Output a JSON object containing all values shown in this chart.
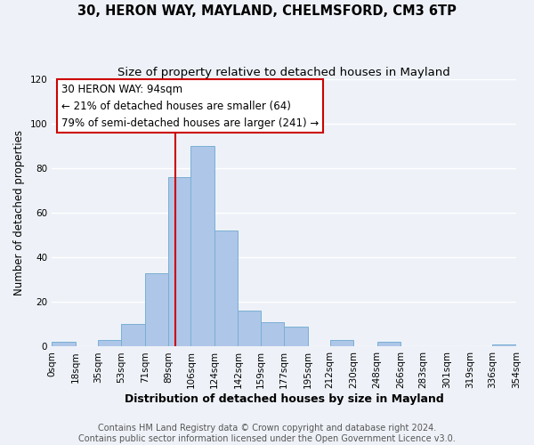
{
  "title": "30, HERON WAY, MAYLAND, CHELMSFORD, CM3 6TP",
  "subtitle": "Size of property relative to detached houses in Mayland",
  "xlabel": "Distribution of detached houses by size in Mayland",
  "ylabel": "Number of detached properties",
  "bar_edges": [
    0,
    18,
    35,
    53,
    71,
    89,
    106,
    124,
    142,
    159,
    177,
    195,
    212,
    230,
    248,
    266,
    283,
    301,
    319,
    336,
    354
  ],
  "bar_heights": [
    2,
    0,
    3,
    10,
    33,
    76,
    90,
    52,
    16,
    11,
    9,
    0,
    3,
    0,
    2,
    0,
    0,
    0,
    0,
    1
  ],
  "bar_color": "#aec6e8",
  "bar_edge_color": "#7aafd4",
  "ylim": [
    0,
    120
  ],
  "yticks": [
    0,
    20,
    40,
    60,
    80,
    100,
    120
  ],
  "vline_x": 94,
  "vline_color": "#cc0000",
  "annotation_line1": "30 HERON WAY: 94sqm",
  "annotation_line2": "← 21% of detached houses are smaller (64)",
  "annotation_line3": "79% of semi-detached houses are larger (241) →",
  "footer_text": "Contains HM Land Registry data © Crown copyright and database right 2024.\nContains public sector information licensed under the Open Government Licence v3.0.",
  "background_color": "#eef2f8",
  "title_fontsize": 10.5,
  "subtitle_fontsize": 9.5,
  "xlabel_fontsize": 9,
  "ylabel_fontsize": 8.5,
  "tick_fontsize": 7.5,
  "annot_fontsize": 8.5,
  "footer_fontsize": 7,
  "xtick_labels": [
    "0sqm",
    "18sqm",
    "35sqm",
    "53sqm",
    "71sqm",
    "89sqm",
    "106sqm",
    "124sqm",
    "142sqm",
    "159sqm",
    "177sqm",
    "195sqm",
    "212sqm",
    "230sqm",
    "248sqm",
    "266sqm",
    "283sqm",
    "301sqm",
    "319sqm",
    "336sqm",
    "354sqm"
  ]
}
